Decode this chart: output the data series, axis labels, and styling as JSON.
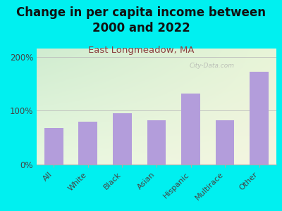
{
  "title": "Change in per capita income between\n2000 and 2022",
  "subtitle": "East Longmeadow, MA",
  "categories": [
    "All",
    "White",
    "Black",
    "Asian",
    "Hispanic",
    "Multirace",
    "Other"
  ],
  "values": [
    68,
    80,
    95,
    82,
    132,
    82,
    172
  ],
  "bar_color": "#b39ddb",
  "background_outer": "#00f0f0",
  "background_inner_tl": "#d0ecd0",
  "background_inner_br": "#f5f5e0",
  "title_fontsize": 12,
  "subtitle_fontsize": 9.5,
  "subtitle_color": "#8b4040",
  "title_color": "#111111",
  "yticks": [
    0,
    100,
    200
  ],
  "ytick_labels": [
    "0%",
    "100%",
    "200%"
  ],
  "ylim": [
    0,
    215
  ],
  "watermark": "City-Data.com"
}
